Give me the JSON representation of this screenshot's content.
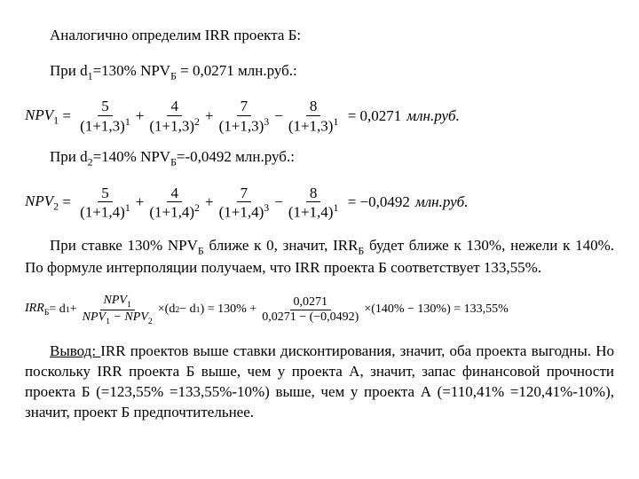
{
  "colors": {
    "text": "#000000",
    "bg": "#ffffff"
  },
  "intro": {
    "line1": "Аналогично определим IRR проекта Б:",
    "line2_pre": "При d",
    "line2_sub": "1",
    "line2_mid": "=130% NPV",
    "line2_sub2": "Б",
    "line2_post": " = 0,0271 млн.руб.:"
  },
  "eq1": {
    "lhs": "NPV",
    "lhs_sub": "1",
    "terms": [
      {
        "sign": "",
        "num": "5",
        "den_base": "(1+1,3)",
        "den_exp": "1"
      },
      {
        "sign": "+",
        "num": "4",
        "den_base": "(1+1,3)",
        "den_exp": "2"
      },
      {
        "sign": "+",
        "num": "7",
        "den_base": "(1+1,3)",
        "den_exp": "3"
      },
      {
        "sign": "−",
        "num": "8",
        "den_base": "(1+1,3)",
        "den_exp": "1"
      }
    ],
    "result": "= 0,0271",
    "unit": "млн.руб."
  },
  "mid": {
    "pre": "При d",
    "sub": "2",
    "mid": "=140% NPV",
    "sub2": "Б",
    "post": "=-0,0492 млн.руб.:"
  },
  "eq2": {
    "lhs": "NPV",
    "lhs_sub": "2",
    "terms": [
      {
        "sign": "",
        "num": "5",
        "den_base": "(1+1,4)",
        "den_exp": "1"
      },
      {
        "sign": "+",
        "num": "4",
        "den_base": "(1+1,4)",
        "den_exp": "2"
      },
      {
        "sign": "+",
        "num": "7",
        "den_base": "(1+1,4)",
        "den_exp": "3"
      },
      {
        "sign": "−",
        "num": "8",
        "den_base": "(1+1,4)",
        "den_exp": "1"
      }
    ],
    "result": "= −0,0492",
    "unit": "млн.руб."
  },
  "para1": {
    "seg1": "При ставке 130% NPV",
    "sub1": "Б",
    "seg2": " ближе к 0, значит, IRR",
    "sub2": "Б",
    "seg3": " будет ближе к 130%, нежели к 140%. По формуле интерполяции получаем, что IRR проекта Б соответствует 133,55%."
  },
  "eq3": {
    "lhs": "IRR",
    "lhs_sub": "Б",
    "eq": " = d",
    "d1sub": "1",
    "plus": " + ",
    "frac_num": "NPV",
    "frac_num_sub": "1",
    "frac_den_a": "NPV",
    "frac_den_a_sub": "1",
    "frac_den_minus": " − NPV",
    "frac_den_b_sub": "2",
    "times": "×(d",
    "d2sub": "2",
    "minus_d": " − d",
    "d1sub2": "1",
    "close": ") = 130% + ",
    "frac2_num": "0,0271",
    "frac2_den": "0,0271 − (−0,0492)",
    "tail": "×(140% − 130%) = 133,55%"
  },
  "conclusion": {
    "label": "Вывод: ",
    "text": "IRR проектов выше ставки дисконтирования, значит, оба проекта выгодны. Но поскольку IRR проекта Б выше, чем у проекта А, значит, запас финансовой прочности проекта Б (=123,55% =133,55%-10%) выше, чем у проекта А (=110,41% =120,41%-10%), значит, проект Б предпочтительнее."
  }
}
